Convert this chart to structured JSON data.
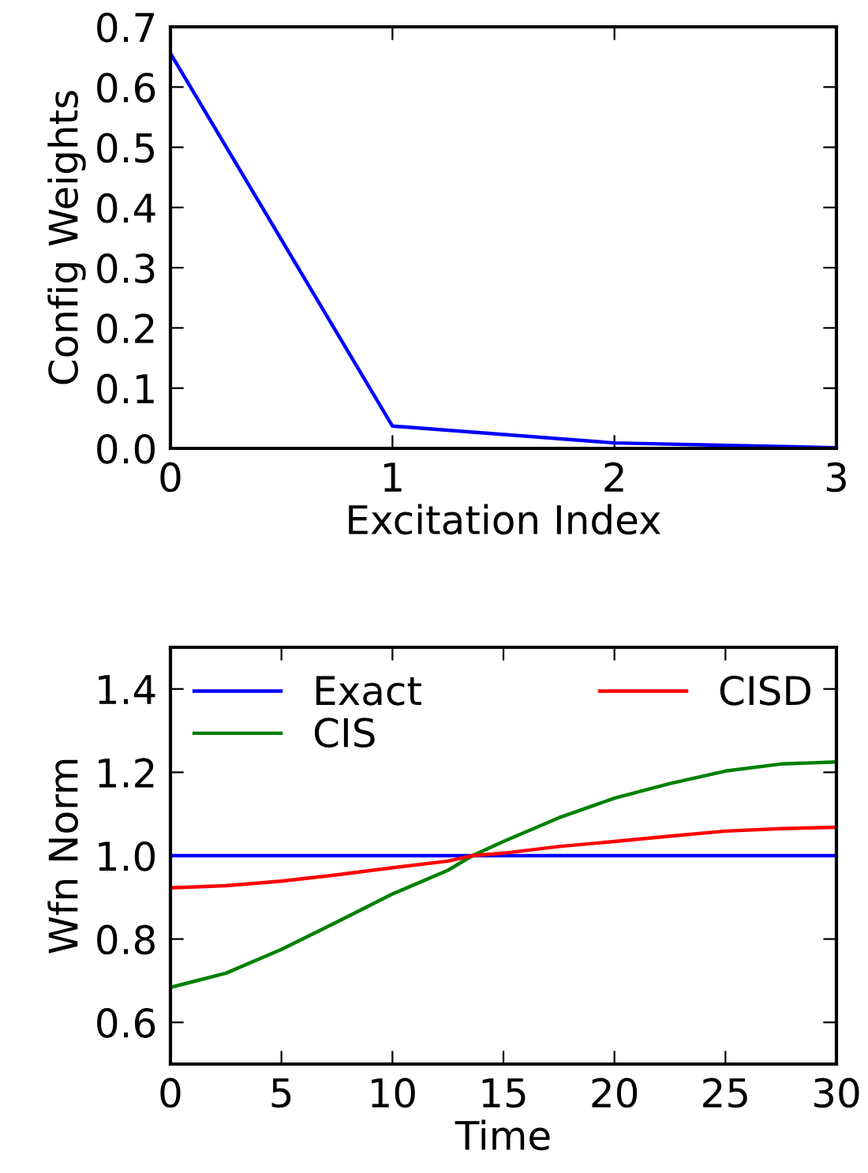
{
  "chart_data": [
    {
      "type": "line",
      "xlabel": "Excitation Index",
      "ylabel": "Config Weights",
      "x": [
        0,
        1,
        2,
        3
      ],
      "xlim": [
        0,
        3
      ],
      "xticks": [
        0,
        1,
        2,
        3
      ],
      "ylim": [
        0,
        0.7
      ],
      "yticks": [
        {
          "value": 0,
          "label": "0.0"
        },
        0.1,
        0.2,
        0.3,
        0.4,
        0.5,
        0.6,
        0.7
      ],
      "series": [
        {
          "color": "#0000ff",
          "values": [
            0.656,
            0.037,
            0.009,
            0.001
          ]
        }
      ],
      "grid": false,
      "legend": false
    },
    {
      "type": "line",
      "xlabel": "Time",
      "ylabel": "Wfn Norm",
      "xlim": [
        0,
        30
      ],
      "xticks": [
        0,
        5,
        10,
        15,
        20,
        25,
        30
      ],
      "ylim": [
        0.5,
        1.5
      ],
      "yticks": [
        0.6,
        0.8,
        {
          "value": 1.0,
          "label": "1.0"
        },
        1.2,
        1.4
      ],
      "grid": false,
      "legend": "top",
      "series": [
        {
          "name": "Exact",
          "color": "#0000ff",
          "x": [
            0,
            30
          ],
          "values": [
            1.0,
            1.0
          ]
        },
        {
          "name": "CIS",
          "color": "#008000",
          "x": [
            0,
            2.5,
            5,
            7.5,
            10,
            12.5,
            13.6,
            15,
            17.5,
            20,
            22.5,
            25,
            27.5,
            30
          ],
          "values": [
            0.684,
            0.718,
            0.775,
            0.841,
            0.908,
            0.965,
            1.0,
            1.034,
            1.091,
            1.138,
            1.173,
            1.203,
            1.22,
            1.225
          ]
        },
        {
          "name": "CISD",
          "color": "#ff0000",
          "x": [
            0,
            2.5,
            5,
            7.5,
            10,
            12.5,
            13.6,
            15,
            17.5,
            20,
            22.5,
            25,
            27.5,
            30
          ],
          "values": [
            0.923,
            0.928,
            0.939,
            0.954,
            0.971,
            0.987,
            1.0,
            1.006,
            1.022,
            1.034,
            1.047,
            1.059,
            1.065,
            1.068
          ]
        }
      ]
    }
  ]
}
